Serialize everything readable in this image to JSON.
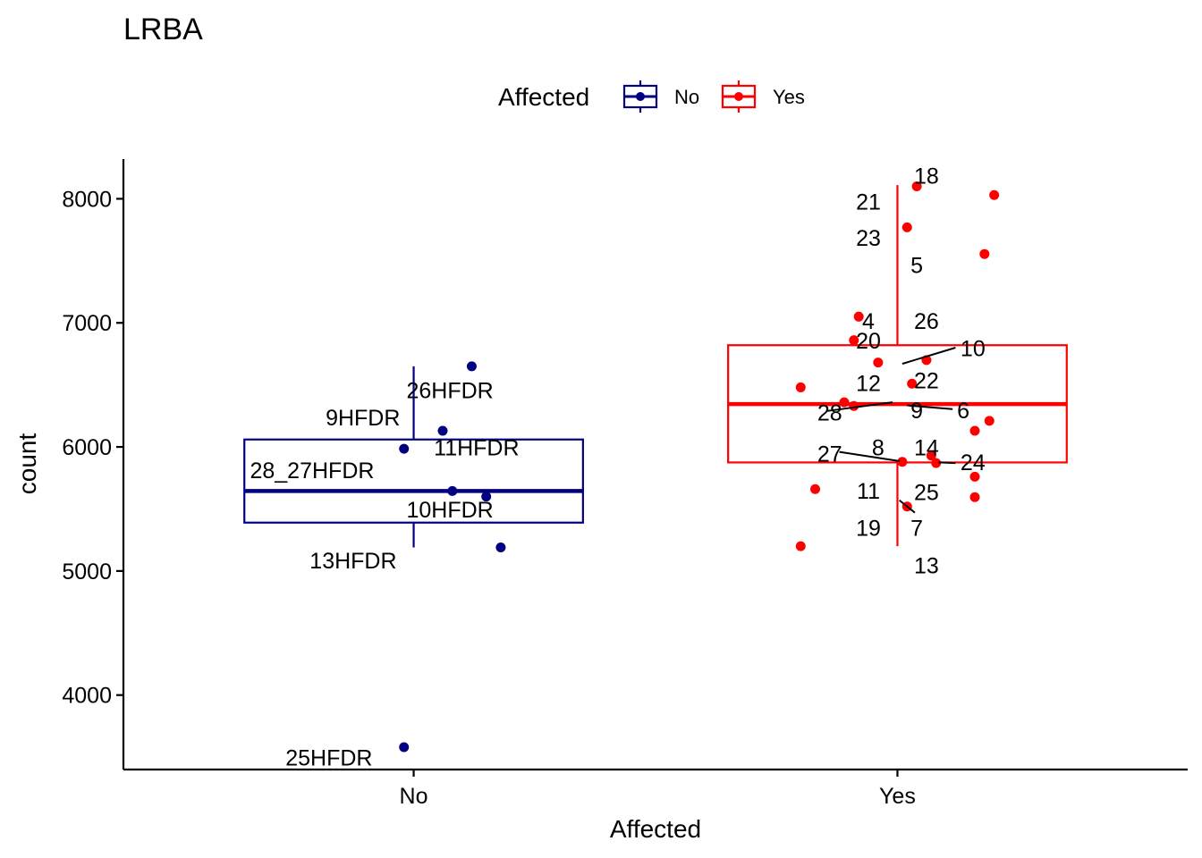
{
  "chart_data": {
    "type": "boxplot",
    "title": "LRBA",
    "xlabel": "Affected",
    "ylabel": "count",
    "categories": [
      "No",
      "Yes"
    ],
    "ylim": [
      3400,
      8320
    ],
    "yticks": [
      4000,
      5000,
      6000,
      7000,
      8000
    ],
    "grid": false,
    "legend": {
      "title": "Affected",
      "position": "top",
      "entries": [
        {
          "label": "No",
          "color": "#000080"
        },
        {
          "label": "Yes",
          "color": "#ff0000"
        }
      ]
    },
    "series": [
      {
        "name": "No",
        "color": "#000080",
        "box": {
          "q1": 5390,
          "median": 5645,
          "q3": 6060,
          "whisker_low": 5190,
          "whisker_high": 6650
        },
        "points": [
          {
            "x": 0.98,
            "y": 5985
          },
          {
            "x": 1.06,
            "y": 6130
          },
          {
            "x": 1.12,
            "y": 6650
          },
          {
            "x": 1.08,
            "y": 5645
          },
          {
            "x": 1.15,
            "y": 5600
          },
          {
            "x": 1.18,
            "y": 5190
          },
          {
            "x": 0.98,
            "y": 3580
          }
        ],
        "labels": [
          {
            "text": "26HFDR",
            "x": 1.075,
            "y": 6450
          },
          {
            "text": "9HFDR",
            "x": 0.895,
            "y": 6230
          },
          {
            "text": "11HFDR",
            "x": 1.13,
            "y": 5990
          },
          {
            "text": "28_27HFDR",
            "x": 0.79,
            "y": 5805
          },
          {
            "text": "10HFDR",
            "x": 1.075,
            "y": 5490
          },
          {
            "text": "13HFDR",
            "x": 0.875,
            "y": 5080
          },
          {
            "text": "25HFDR",
            "x": 0.825,
            "y": 3490
          }
        ]
      },
      {
        "name": "Yes",
        "color": "#ff0000",
        "box": {
          "q1": 5875,
          "median": 6345,
          "q3": 6820,
          "whisker_low": 5200,
          "whisker_high": 8110
        },
        "points": [
          {
            "x": 2.04,
            "y": 8100
          },
          {
            "x": 2.2,
            "y": 8030
          },
          {
            "x": 2.02,
            "y": 7770
          },
          {
            "x": 2.18,
            "y": 7555
          },
          {
            "x": 1.92,
            "y": 7050
          },
          {
            "x": 1.91,
            "y": 6860
          },
          {
            "x": 1.96,
            "y": 6680
          },
          {
            "x": 2.06,
            "y": 6700
          },
          {
            "x": 2.03,
            "y": 6510
          },
          {
            "x": 1.8,
            "y": 6480
          },
          {
            "x": 1.89,
            "y": 6360
          },
          {
            "x": 1.91,
            "y": 6330
          },
          {
            "x": 2.19,
            "y": 6210
          },
          {
            "x": 2.16,
            "y": 6130
          },
          {
            "x": 2.01,
            "y": 5880
          },
          {
            "x": 2.07,
            "y": 5930
          },
          {
            "x": 2.08,
            "y": 5870
          },
          {
            "x": 2.16,
            "y": 5760
          },
          {
            "x": 1.83,
            "y": 5660
          },
          {
            "x": 2.16,
            "y": 5595
          },
          {
            "x": 2.02,
            "y": 5520
          },
          {
            "x": 1.8,
            "y": 5200
          }
        ],
        "labels": [
          {
            "text": "18",
            "x": 2.06,
            "y": 8180
          },
          {
            "text": "21",
            "x": 1.94,
            "y": 7970
          },
          {
            "text": "23",
            "x": 1.94,
            "y": 7680
          },
          {
            "text": "5",
            "x": 2.04,
            "y": 7460
          },
          {
            "text": "4",
            "x": 1.94,
            "y": 7010
          },
          {
            "text": "26",
            "x": 2.06,
            "y": 7010
          },
          {
            "text": "20",
            "x": 1.94,
            "y": 6850
          },
          {
            "text": "10",
            "x": 2.156,
            "y": 6790
          },
          {
            "text": "12",
            "x": 1.94,
            "y": 6510
          },
          {
            "text": "22",
            "x": 2.06,
            "y": 6530
          },
          {
            "text": "28",
            "x": 1.86,
            "y": 6270
          },
          {
            "text": "9",
            "x": 2.04,
            "y": 6290
          },
          {
            "text": "6",
            "x": 2.136,
            "y": 6290
          },
          {
            "text": "8",
            "x": 1.96,
            "y": 5990
          },
          {
            "text": "14",
            "x": 2.06,
            "y": 5990
          },
          {
            "text": "27",
            "x": 1.86,
            "y": 5940
          },
          {
            "text": "24",
            "x": 2.156,
            "y": 5870
          },
          {
            "text": "11",
            "x": 1.94,
            "y": 5640
          },
          {
            "text": "25",
            "x": 2.06,
            "y": 5630
          },
          {
            "text": "19",
            "x": 1.94,
            "y": 5340
          },
          {
            "text": "7",
            "x": 2.04,
            "y": 5340
          },
          {
            "text": "13",
            "x": 2.06,
            "y": 5040
          }
        ],
        "segments": [
          {
            "x1": 2.01,
            "y1": 6670,
            "x2": 2.12,
            "y2": 6800
          },
          {
            "x1": 1.855,
            "y1": 6290,
            "x2": 1.99,
            "y2": 6360
          },
          {
            "x1": 2.02,
            "y1": 6335,
            "x2": 2.114,
            "y2": 6305
          },
          {
            "x1": 1.88,
            "y1": 5960,
            "x2": 2.005,
            "y2": 5885
          },
          {
            "x1": 2.085,
            "y1": 5875,
            "x2": 2.12,
            "y2": 5870
          },
          {
            "x1": 2.004,
            "y1": 5570,
            "x2": 2.036,
            "y2": 5470
          }
        ]
      }
    ]
  }
}
